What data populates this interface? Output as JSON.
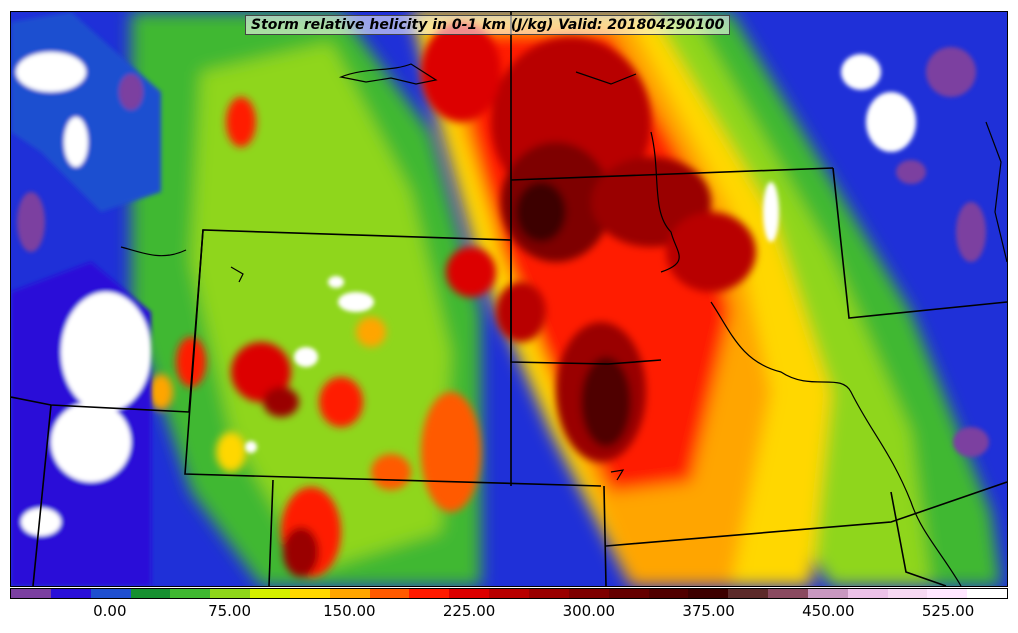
{
  "title": "Storm relative helicity in 0-1 km (J/kg) Valid: 201804290100",
  "colorbar": {
    "min": -50,
    "max": 575,
    "step": 25,
    "colors": [
      "#7b3fa0",
      "#2a0fd8",
      "#1e4fd0",
      "#169030",
      "#3fb830",
      "#8fd61a",
      "#d4f000",
      "#ffd700",
      "#ffa500",
      "#ff5a00",
      "#ff1a00",
      "#dc0000",
      "#b80000",
      "#9a0000",
      "#7e0000",
      "#640000",
      "#500000",
      "#3c0000",
      "#5c2a2a",
      "#8a4a60",
      "#c898c0",
      "#ecc2e8",
      "#f6d8f2",
      "#ffe6ff",
      "#ffffff"
    ],
    "tick_labels": [
      "0.00",
      "75.00",
      "150.00",
      "225.00",
      "300.00",
      "375.00",
      "450.00",
      "525.00"
    ],
    "tick_values": [
      0,
      75,
      150,
      225,
      300,
      375,
      450,
      525
    ]
  }
}
